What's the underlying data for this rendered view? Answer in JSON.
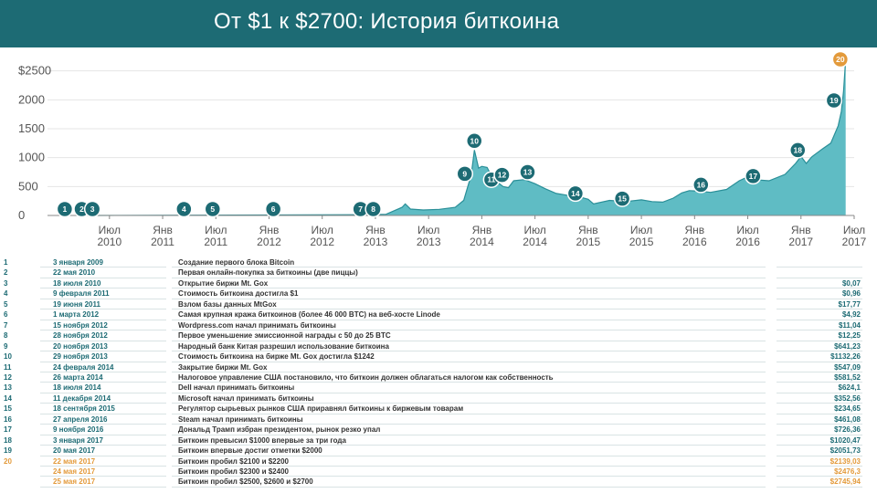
{
  "header": {
    "title": "От $1 к $2700: История биткоина"
  },
  "colors": {
    "header_bg": "#1d6b74",
    "area_fill": "#5fbcc4",
    "area_line": "#2a8f98",
    "marker": "#1d6b74",
    "marker_highlight": "#e39a3b",
    "accent_text": "#1d6b74"
  },
  "chart_data": {
    "type": "area",
    "ylim": [
      0,
      2700
    ],
    "yticks": [
      0,
      500,
      1000,
      1500,
      2000,
      2500
    ],
    "ytick_labels": [
      "0",
      "500",
      "1000",
      "1500",
      "2000",
      "$2500"
    ],
    "xticks": [
      {
        "t": 2010.5,
        "label1": "Июл",
        "label2": "2010"
      },
      {
        "t": 2011.0,
        "label1": "Янв",
        "label2": "2011"
      },
      {
        "t": 2011.5,
        "label1": "Июл",
        "label2": "2011"
      },
      {
        "t": 2012.0,
        "label1": "Янв",
        "label2": "2012"
      },
      {
        "t": 2012.5,
        "label1": "Июл",
        "label2": "2012"
      },
      {
        "t": 2013.0,
        "label1": "Янв",
        "label2": "2013"
      },
      {
        "t": 2013.5,
        "label1": "Июл",
        "label2": "2013"
      },
      {
        "t": 2014.0,
        "label1": "Янв",
        "label2": "2014"
      },
      {
        "t": 2014.5,
        "label1": "Июл",
        "label2": "2014"
      },
      {
        "t": 2015.0,
        "label1": "Янв",
        "label2": "2015"
      },
      {
        "t": 2015.5,
        "label1": "Июл",
        "label2": "2015"
      },
      {
        "t": 2016.0,
        "label1": "Янв",
        "label2": "2016"
      },
      {
        "t": 2016.5,
        "label1": "Июл",
        "label2": "2016"
      },
      {
        "t": 2017.0,
        "label1": "Янв",
        "label2": "2017"
      },
      {
        "t": 2017.5,
        "label1": "Июл",
        "label2": "2017"
      }
    ],
    "series": [
      {
        "t": [
          2010.35,
          2012.9,
          2013.1,
          2013.25,
          2013.28,
          2013.33,
          2013.45,
          2013.6,
          2013.75,
          2013.83,
          2013.9,
          2013.93,
          2013.97,
          2014.0,
          2014.05,
          2014.1,
          2014.15,
          2014.2,
          2014.25,
          2014.3,
          2014.4,
          2014.5,
          2014.6,
          2014.7,
          2014.8,
          2014.9,
          2015.0,
          2015.05,
          2015.2,
          2015.35,
          2015.5,
          2015.6,
          2015.7,
          2015.8,
          2015.88,
          2015.95,
          2016.05,
          2016.15,
          2016.3,
          2016.42,
          2016.48,
          2016.55,
          2016.7,
          2016.85,
          2016.95,
          2017.0,
          2017.05,
          2017.1,
          2017.2,
          2017.28,
          2017.35,
          2017.38,
          2017.4,
          2017.42
        ],
        "y": [
          0,
          13,
          20,
          140,
          200,
          110,
          95,
          105,
          140,
          260,
          700,
          1130,
          820,
          850,
          830,
          650,
          570,
          500,
          480,
          600,
          620,
          550,
          460,
          380,
          350,
          330,
          280,
          200,
          260,
          240,
          270,
          240,
          230,
          300,
          390,
          430,
          420,
          400,
          450,
          600,
          650,
          620,
          600,
          710,
          900,
          1020,
          900,
          1010,
          1150,
          1250,
          1550,
          1800,
          2150,
          2700
        ]
      }
    ],
    "markers": [
      {
        "n": "1",
        "t": 2010.08,
        "y": 0
      },
      {
        "n": "2",
        "t": 2010.24,
        "y": 0
      },
      {
        "n": "3",
        "t": 2010.34,
        "y": 0
      },
      {
        "n": "4",
        "t": 2011.2,
        "y": 0
      },
      {
        "n": "5",
        "t": 2011.47,
        "y": 50
      },
      {
        "n": "6",
        "t": 2012.04,
        "y": 0
      },
      {
        "n": "7",
        "t": 2012.86,
        "y": 15
      },
      {
        "n": "8",
        "t": 2012.98,
        "y": 15
      },
      {
        "n": "9",
        "t": 2013.84,
        "y": 720
      },
      {
        "n": "10",
        "t": 2013.93,
        "y": 1290
      },
      {
        "n": "11",
        "t": 2014.09,
        "y": 620
      },
      {
        "n": "12",
        "t": 2014.19,
        "y": 700
      },
      {
        "n": "13",
        "t": 2014.43,
        "y": 750
      },
      {
        "n": "14",
        "t": 2014.88,
        "y": 380
      },
      {
        "n": "15",
        "t": 2015.32,
        "y": 290
      },
      {
        "n": "16",
        "t": 2016.06,
        "y": 530
      },
      {
        "n": "17",
        "t": 2016.55,
        "y": 680
      },
      {
        "n": "18",
        "t": 2016.97,
        "y": 1130
      },
      {
        "n": "19",
        "t": 2017.31,
        "y": 1990
      },
      {
        "n": "20",
        "t": 2017.37,
        "y": 2700,
        "highlight": true
      }
    ]
  },
  "table": {
    "rows": [
      {
        "num": "1",
        "date": "3 января 2009",
        "event": "Создание первого блока Bitcoin",
        "price": ""
      },
      {
        "num": "2",
        "date": "22 мая 2010",
        "event": "Первая онлайн-покупка за биткоины (две пиццы)",
        "price": ""
      },
      {
        "num": "3",
        "date": "18 июля 2010",
        "event": "Открытие биржи Mt. Gox",
        "price": "$0,07"
      },
      {
        "num": "4",
        "date": "9 февраля 2011",
        "event": "Стоимость биткоина достигла $1",
        "price": "$0,96"
      },
      {
        "num": "5",
        "date": "19 июня 2011",
        "event": "Взлом базы данных MtGox",
        "price": "$17,77"
      },
      {
        "num": "6",
        "date": "1 марта 2012",
        "event": "Самая крупная кража биткоинов (более 46 000 BTC) на веб-хосте Linode",
        "price": "$4,92"
      },
      {
        "num": "7",
        "date": "15 ноября 2012",
        "event": "Wordpress.com начал принимать биткоины",
        "price": "$11,04"
      },
      {
        "num": "8",
        "date": "28 ноября 2012",
        "event": "Первое уменьшение эмиссионной награды с 50 до 25 BTC",
        "price": "$12,25"
      },
      {
        "num": "9",
        "date": "20 ноября 2013",
        "event": "Народный банк Китая разрешил использование биткоина",
        "price": "$641,23"
      },
      {
        "num": "10",
        "date": "29 ноября 2013",
        "event": "Стоимость биткоина на бирже Mt. Gox достигла $1242",
        "price": "$1132,26"
      },
      {
        "num": "11",
        "date": "24 февраля 2014",
        "event": "Закрытие биржи Mt. Gox",
        "price": "$547,09"
      },
      {
        "num": "12",
        "date": "26 марта 2014",
        "event": "Налоговое управление США постановило, что биткоин должен облагаться налогом как собственность",
        "price": "$581,52"
      },
      {
        "num": "13",
        "date": "18 июля 2014",
        "event": "Dell начал принимать биткоины",
        "price": "$624,1"
      },
      {
        "num": "14",
        "date": "11 декабря 2014",
        "event": "Microsoft начал принимать биткоины",
        "price": "$352,56"
      },
      {
        "num": "15",
        "date": "18 сентября 2015",
        "event": "Регулятор сырьевых рынков США приравнял биткоины к биржевым товарам",
        "price": "$234,65"
      },
      {
        "num": "16",
        "date": "27 апреля 2016",
        "event": "Steam начал принимать биткоины",
        "price": "$461,08"
      },
      {
        "num": "17",
        "date": "9 ноября 2016",
        "event": "Дональд Трамп избран президентом, рынок резко упал",
        "price": "$726,36"
      },
      {
        "num": "18",
        "date": "3 января 2017",
        "event": "Биткоин превысил $1000 впервые за три года",
        "price": "$1020,47"
      },
      {
        "num": "19",
        "date": "20 мая 2017",
        "event": "Биткоин впервые достиг отметки $2000",
        "price": "$2051,73"
      },
      {
        "num": "20",
        "date": "22 мая 2017",
        "event": "Биткоин пробил $2100 и $2200",
        "price": "$2139,03",
        "highlight": true
      },
      {
        "num": "",
        "date": "24 мая 2017",
        "event": "Биткоин пробил $2300 и $2400",
        "price": "$2476,3",
        "highlight": true
      },
      {
        "num": "",
        "date": "25 мая 2017",
        "event": "Биткоин пробил $2500, $2600 и $2700",
        "price": "$2745,94",
        "highlight": true
      }
    ]
  }
}
